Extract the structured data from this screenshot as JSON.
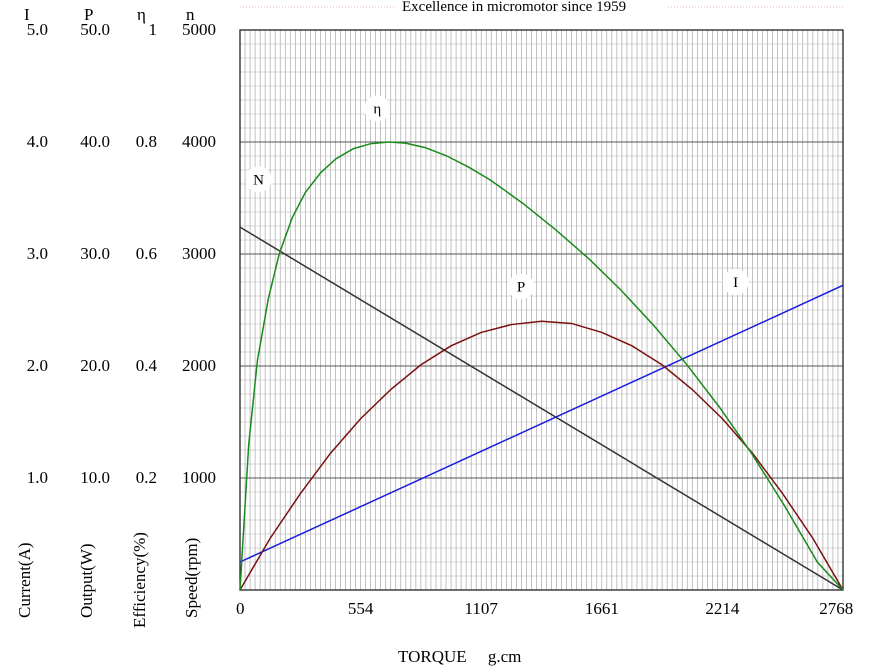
{
  "header": {
    "title": "Excellence in micromotor since 1959"
  },
  "chart_data": {
    "type": "line",
    "xlabel": "TORQUE     g.cm",
    "xlim": [
      0,
      2768
    ],
    "x_ticks": [
      "0",
      "554",
      "1107",
      "1661",
      "2214",
      "2768"
    ],
    "x_tick_values": [
      0,
      554,
      1107,
      1661,
      2214,
      2768
    ],
    "grid": true,
    "y_axes": [
      {
        "symbol": "I",
        "label": "Current(A)",
        "range": [
          0,
          5.0
        ],
        "ticks": [
          "5.0",
          "4.0",
          "3.0",
          "2.0",
          "1.0"
        ]
      },
      {
        "symbol": "P",
        "label": "Output(W)",
        "range": [
          0,
          50.0
        ],
        "ticks": [
          "50.0",
          "40.0",
          "30.0",
          "20.0",
          "10.0"
        ]
      },
      {
        "symbol": "η",
        "label": "Efficiency(%)",
        "range": [
          0,
          1
        ],
        "ticks": [
          "1",
          "0.8",
          "0.6",
          "0.4",
          "0.2"
        ]
      },
      {
        "symbol": "n",
        "label": "Speed(rpm)",
        "range": [
          0,
          5000
        ],
        "ticks": [
          "5000",
          "4000",
          "3000",
          "2000",
          "1000"
        ]
      }
    ],
    "series": [
      {
        "name": "N",
        "axis": "n",
        "color": "#333333",
        "x": [
          0,
          2768
        ],
        "y": [
          3240,
          0
        ]
      },
      {
        "name": "I",
        "axis": "I",
        "color": "#1a1adf",
        "x": [
          0,
          2768
        ],
        "y": [
          0.25,
          2.72
        ]
      },
      {
        "name": "P",
        "axis": "P",
        "color": "#7a1010",
        "x": [
          0,
          138,
          277,
          415,
          554,
          692,
          830,
          969,
          1107,
          1246,
          1384,
          1522,
          1661,
          1799,
          1938,
          2076,
          2214,
          2353,
          2491,
          2630,
          2768
        ],
        "y": [
          0,
          4.6,
          8.6,
          12.2,
          15.3,
          17.9,
          20.1,
          21.8,
          23.0,
          23.7,
          24.0,
          23.8,
          23.0,
          21.8,
          20.1,
          17.9,
          15.3,
          12.2,
          8.6,
          4.6,
          0
        ]
      },
      {
        "name": "η",
        "axis": "η",
        "color": "#1a8a1a",
        "x": [
          0,
          40,
          80,
          130,
          180,
          240,
          300,
          370,
          440,
          520,
          600,
          680,
          760,
          850,
          950,
          1050,
          1150,
          1300,
          1450,
          1600,
          1750,
          1900,
          2050,
          2200,
          2350,
          2500,
          2650,
          2768
        ],
        "y": [
          0,
          0.26,
          0.41,
          0.52,
          0.6,
          0.665,
          0.71,
          0.745,
          0.77,
          0.788,
          0.797,
          0.8,
          0.798,
          0.79,
          0.775,
          0.755,
          0.732,
          0.69,
          0.643,
          0.592,
          0.535,
          0.472,
          0.403,
          0.327,
          0.243,
          0.15,
          0.05,
          0
        ]
      }
    ]
  }
}
